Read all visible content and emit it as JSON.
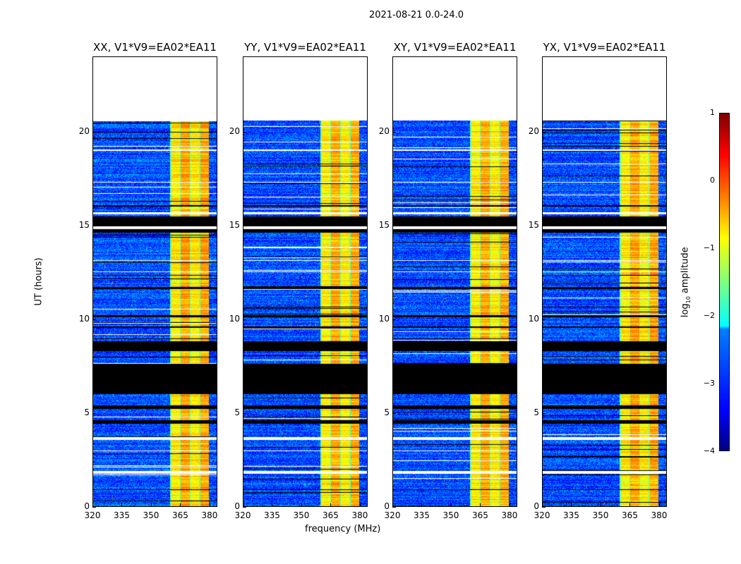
{
  "chart_data": {
    "type": "heatmap",
    "title": "2021-08-21 0.0-24.0",
    "xlabel": "frequency (MHz)",
    "ylabel": "UT (hours)",
    "xlim": [
      320,
      384
    ],
    "ylim": [
      0,
      24
    ],
    "xticks": [
      "320",
      "335",
      "350",
      "365",
      "380"
    ],
    "xtick_values": [
      320,
      335,
      350,
      365,
      380
    ],
    "yticks": [
      "0",
      "5",
      "10",
      "15",
      "20"
    ],
    "ytick_values": [
      0,
      5,
      10,
      15,
      20
    ],
    "data_end_hours": 20.6,
    "bright_band_mhz": [
      360,
      380
    ],
    "panels": [
      {
        "title": "XX, V1*V9=EA02*EA11"
      },
      {
        "title": "YY, V1*V9=EA02*EA11"
      },
      {
        "title": "XY, V1*V9=EA02*EA11"
      },
      {
        "title": "YX, V1*V9=EA02*EA11"
      }
    ],
    "colorbar": {
      "label_prefix": "log",
      "label_sub": "10",
      "label_suffix": " amplitude",
      "range": [
        -4,
        1
      ],
      "ticks": [
        "1",
        "0",
        "−1",
        "−2",
        "−3",
        "−4"
      ],
      "tick_values": [
        1,
        0,
        -1,
        -2,
        -3,
        -4
      ],
      "colormap": "jet"
    },
    "flagged_black_hours": [
      [
        14.6,
        15.5
      ],
      [
        6.0,
        7.6
      ],
      [
        8.3,
        8.8
      ],
      [
        4.4,
        4.6
      ],
      [
        5.2,
        5.4
      ],
      [
        0.85,
        0.9
      ],
      [
        16.0,
        16.1
      ],
      [
        10.1,
        10.2
      ],
      [
        11.6,
        11.7
      ],
      [
        9.55,
        9.6
      ]
    ],
    "flagged_white_hours": [
      [
        1.75,
        1.9
      ],
      [
        3.55,
        3.7
      ],
      [
        14.8,
        14.95
      ],
      [
        15.6,
        15.7
      ],
      [
        17.3,
        17.35
      ],
      [
        19.0,
        19.05
      ],
      [
        12.5,
        12.55
      ],
      [
        13.1,
        13.15
      ]
    ]
  }
}
